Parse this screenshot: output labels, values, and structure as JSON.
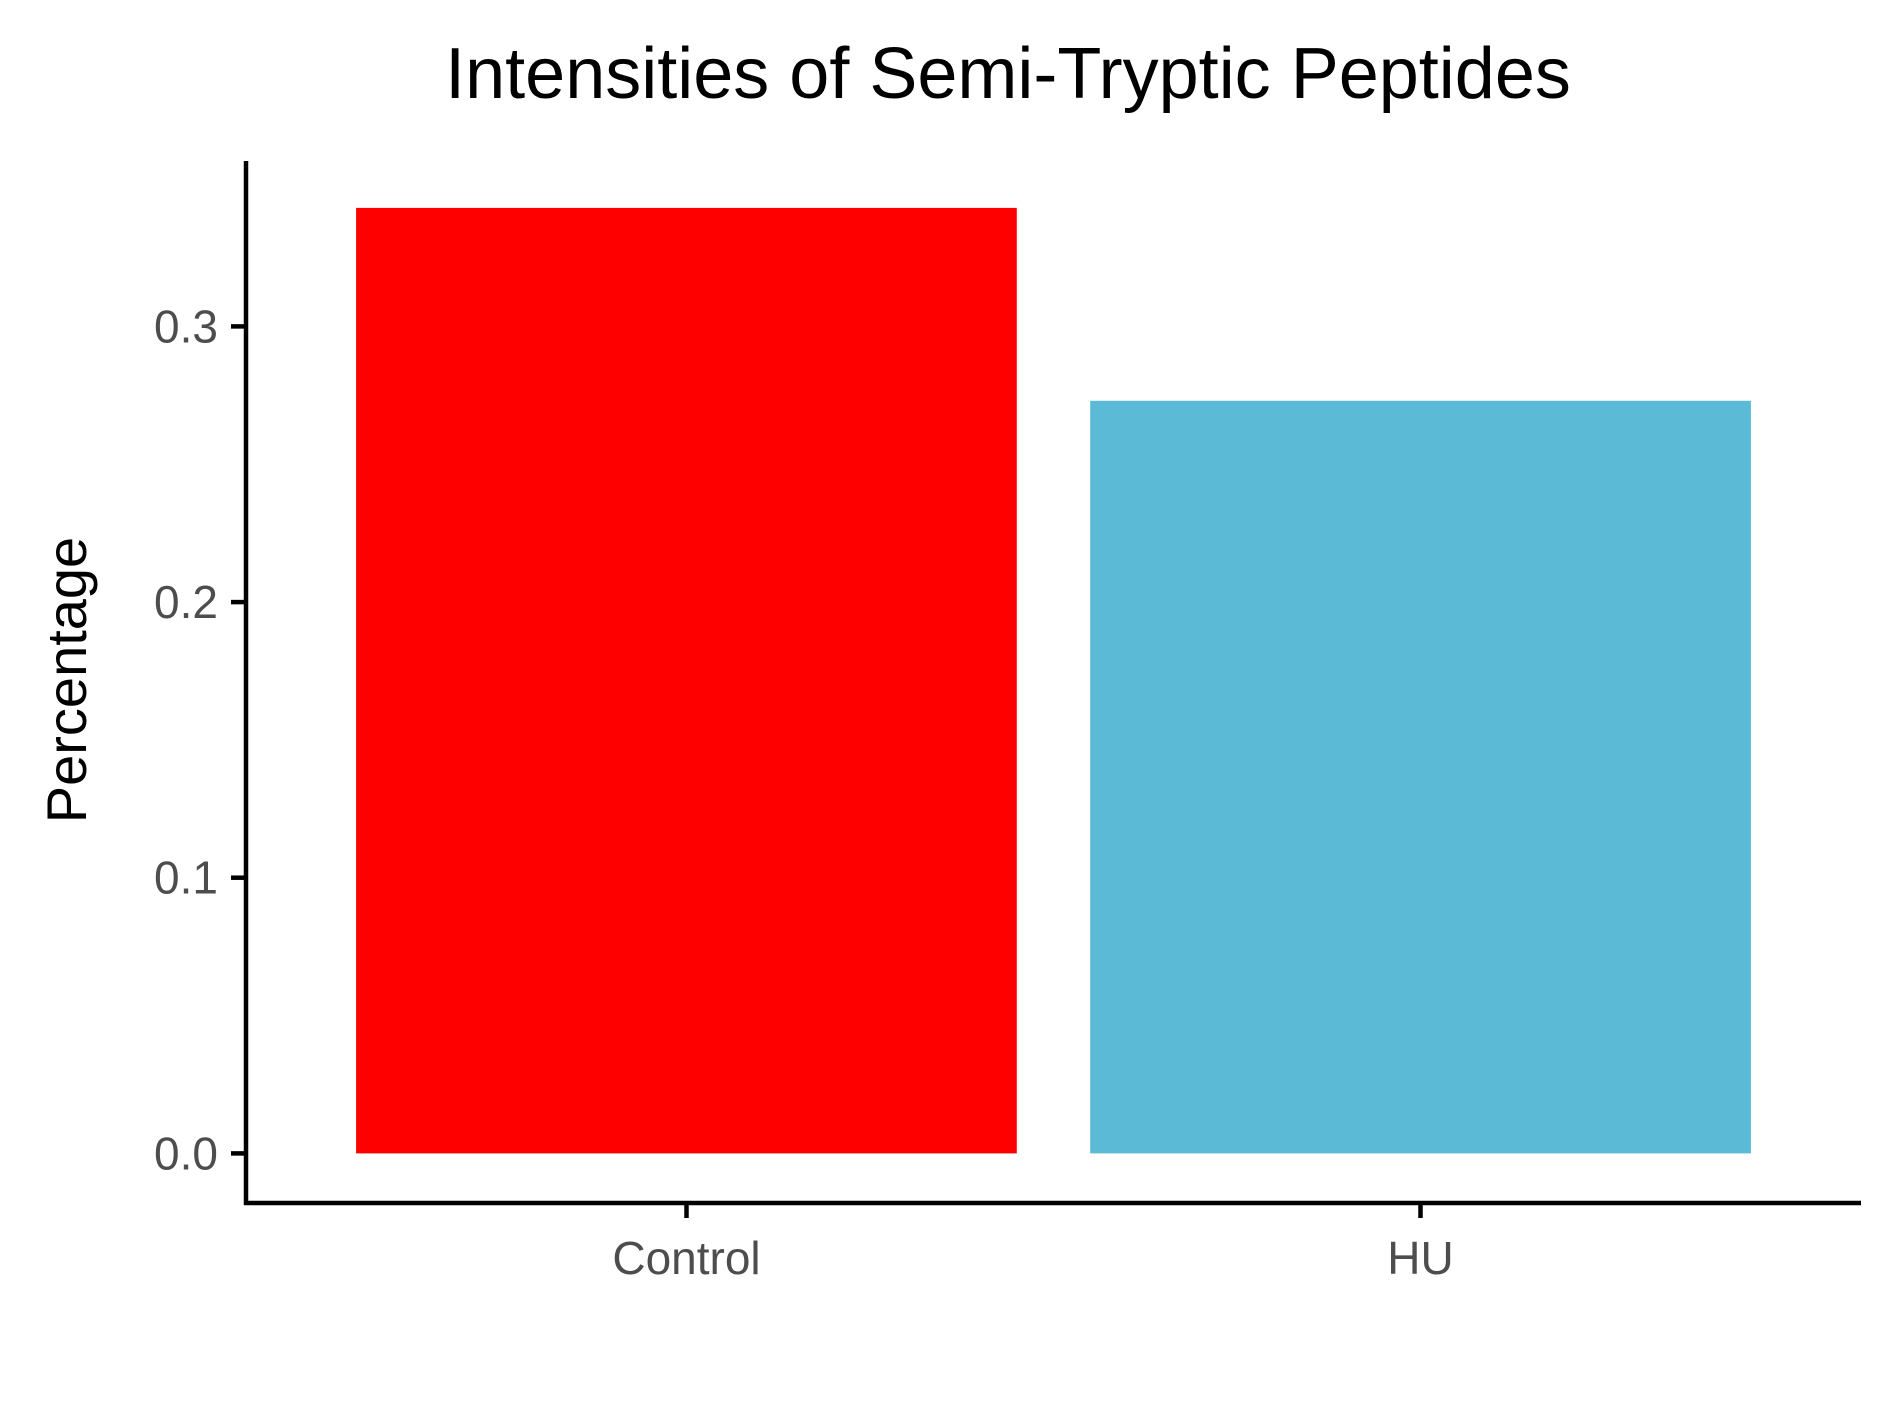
{
  "chart_data": {
    "type": "bar",
    "title": "Intensities of Semi-Tryptic Peptides",
    "xlabel": "",
    "ylabel": "Percentage",
    "categories": [
      "Control",
      "HU"
    ],
    "values": [
      0.343,
      0.273
    ],
    "colors": [
      "#ff0000",
      "#5bbad5"
    ],
    "ylim": [
      -0.018,
      0.36
    ],
    "yticks": [
      0.0,
      0.1,
      0.2,
      0.3
    ],
    "ytick_labels": [
      "0.0",
      "0.1",
      "0.2",
      "0.3"
    ],
    "grid": false,
    "legend": "none"
  }
}
